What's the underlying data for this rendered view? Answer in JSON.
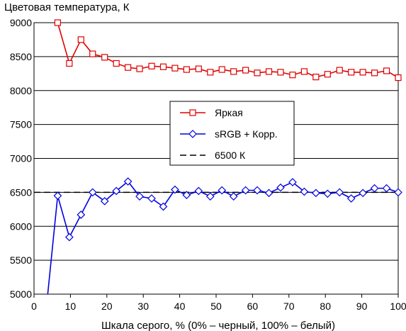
{
  "chart_data": {
    "type": "line",
    "title": "Цветовая температура, К",
    "xlabel": "Шкала серого, % (0% – черный, 100% – белый)",
    "ylabel": "",
    "xlim": [
      0,
      100
    ],
    "ylim": [
      5000,
      9000
    ],
    "x_ticks": [
      "0",
      "10",
      "20",
      "30",
      "40",
      "50",
      "60",
      "70",
      "80",
      "90",
      "100"
    ],
    "y_ticks": [
      "5000",
      "5500",
      "6000",
      "6500",
      "7000",
      "7500",
      "8000",
      "8500",
      "9000"
    ],
    "grid": "horizontal",
    "legend_position": "center-right",
    "series": [
      {
        "name": "Яркая",
        "color": "#e00000",
        "marker": "square",
        "line_style": "solid",
        "x": [
          6.5,
          9.7,
          12.9,
          16.1,
          19.4,
          22.6,
          25.8,
          29.0,
          32.3,
          35.5,
          38.7,
          41.9,
          45.2,
          48.4,
          51.6,
          54.8,
          58.1,
          61.3,
          64.5,
          67.7,
          71.0,
          74.2,
          77.4,
          80.6,
          83.9,
          87.1,
          90.3,
          93.5,
          96.8,
          100
        ],
        "y": [
          9000,
          8400,
          8750,
          8540,
          8490,
          8400,
          8340,
          8320,
          8360,
          8350,
          8330,
          8310,
          8320,
          8270,
          8310,
          8280,
          8300,
          8260,
          8280,
          8270,
          8230,
          8280,
          8200,
          8240,
          8300,
          8270,
          8270,
          8260,
          8290,
          8190
        ]
      },
      {
        "name": "sRGB + Корр.",
        "color": "#0000e0",
        "marker": "diamond",
        "line_style": "solid",
        "x": [
          3.2,
          6.5,
          9.7,
          12.9,
          16.1,
          19.4,
          22.6,
          25.8,
          29.0,
          32.3,
          35.5,
          38.7,
          41.9,
          45.2,
          48.4,
          51.6,
          54.8,
          58.1,
          61.3,
          64.5,
          67.7,
          71.0,
          74.2,
          77.4,
          80.6,
          83.9,
          87.1,
          90.3,
          93.5,
          96.8,
          100
        ],
        "y": [
          4700,
          6450,
          5840,
          6170,
          6500,
          6370,
          6520,
          6660,
          6440,
          6410,
          6290,
          6540,
          6460,
          6520,
          6440,
          6530,
          6440,
          6530,
          6530,
          6490,
          6570,
          6650,
          6510,
          6490,
          6480,
          6500,
          6410,
          6490,
          6560,
          6560,
          6500
        ]
      },
      {
        "name": "6500 К",
        "color": "#000000",
        "marker": "none",
        "line_style": "dashed",
        "x": [
          0,
          100
        ],
        "y": [
          6500,
          6500
        ]
      }
    ]
  }
}
